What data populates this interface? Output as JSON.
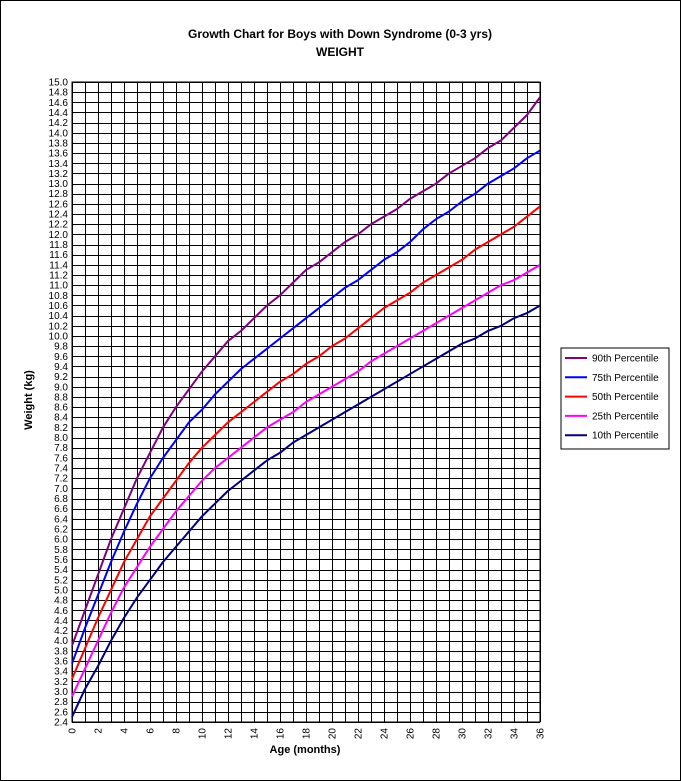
{
  "chart_data": {
    "type": "line",
    "title": "Growth Chart for Boys with Down Syndrome  (0-3 yrs)",
    "subtitle": "WEIGHT",
    "xlabel": "Age (months)",
    "ylabel": "Weight  (kg)",
    "xlim": [
      0,
      36
    ],
    "ylim": [
      2.4,
      15.0
    ],
    "x_major_step": 2,
    "x_minor_step": 1,
    "y_step": 0.2,
    "grid": true,
    "legend_position": "right",
    "series": [
      {
        "name": "90th Percentile",
        "color": "#800080",
        "x": [
          0,
          1,
          2,
          3,
          4,
          5,
          6,
          7,
          8,
          9,
          10,
          11,
          12,
          13,
          14,
          15,
          16,
          17,
          18,
          19,
          20,
          21,
          22,
          23,
          24,
          25,
          26,
          27,
          28,
          29,
          30,
          31,
          32,
          33,
          34,
          35,
          36
        ],
        "y": [
          3.9,
          4.6,
          5.3,
          6.0,
          6.6,
          7.2,
          7.7,
          8.2,
          8.6,
          8.95,
          9.3,
          9.6,
          9.9,
          10.1,
          10.35,
          10.6,
          10.8,
          11.05,
          11.3,
          11.45,
          11.65,
          11.85,
          12.0,
          12.2,
          12.35,
          12.5,
          12.7,
          12.85,
          13.0,
          13.2,
          13.35,
          13.5,
          13.7,
          13.85,
          14.1,
          14.35,
          14.7
        ]
      },
      {
        "name": "75th Percentile",
        "color": "#0000ff",
        "x": [
          0,
          1,
          2,
          3,
          4,
          5,
          6,
          7,
          8,
          9,
          10,
          11,
          12,
          13,
          14,
          15,
          16,
          17,
          18,
          19,
          20,
          21,
          22,
          23,
          24,
          25,
          26,
          27,
          28,
          29,
          30,
          31,
          32,
          33,
          34,
          35,
          36
        ],
        "y": [
          3.55,
          4.25,
          4.9,
          5.55,
          6.15,
          6.7,
          7.2,
          7.6,
          7.95,
          8.3,
          8.55,
          8.85,
          9.1,
          9.35,
          9.55,
          9.75,
          9.95,
          10.15,
          10.35,
          10.55,
          10.75,
          10.95,
          11.1,
          11.3,
          11.5,
          11.65,
          11.85,
          12.1,
          12.3,
          12.45,
          12.65,
          12.8,
          13.0,
          13.15,
          13.3,
          13.5,
          13.65
        ]
      },
      {
        "name": "50th Percentile",
        "color": "#ff0000",
        "x": [
          0,
          1,
          2,
          3,
          4,
          5,
          6,
          7,
          8,
          9,
          10,
          11,
          12,
          13,
          14,
          15,
          16,
          17,
          18,
          19,
          20,
          21,
          22,
          23,
          24,
          25,
          26,
          27,
          28,
          29,
          30,
          31,
          32,
          33,
          34,
          35,
          36
        ],
        "y": [
          3.25,
          3.85,
          4.45,
          5.0,
          5.55,
          6.0,
          6.45,
          6.8,
          7.15,
          7.5,
          7.8,
          8.05,
          8.3,
          8.5,
          8.7,
          8.9,
          9.1,
          9.25,
          9.45,
          9.6,
          9.8,
          9.95,
          10.15,
          10.35,
          10.55,
          10.7,
          10.85,
          11.05,
          11.2,
          11.35,
          11.5,
          11.7,
          11.85,
          12.0,
          12.15,
          12.35,
          12.55
        ]
      },
      {
        "name": "25th Percentile",
        "color": "#ff00ff",
        "x": [
          0,
          1,
          2,
          3,
          4,
          5,
          6,
          7,
          8,
          9,
          10,
          11,
          12,
          13,
          14,
          15,
          16,
          17,
          18,
          19,
          20,
          21,
          22,
          23,
          24,
          25,
          26,
          27,
          28,
          29,
          30,
          31,
          32,
          33,
          34,
          35,
          36
        ],
        "y": [
          2.9,
          3.45,
          4.0,
          4.55,
          5.05,
          5.45,
          5.85,
          6.2,
          6.55,
          6.85,
          7.15,
          7.4,
          7.6,
          7.8,
          8.0,
          8.2,
          8.35,
          8.5,
          8.7,
          8.85,
          9.0,
          9.15,
          9.3,
          9.5,
          9.65,
          9.8,
          9.95,
          10.1,
          10.25,
          10.4,
          10.55,
          10.7,
          10.85,
          11.0,
          11.1,
          11.25,
          11.4
        ]
      },
      {
        "name": "10th Percentile",
        "color": "#000080",
        "x": [
          0,
          1,
          2,
          3,
          4,
          5,
          6,
          7,
          8,
          9,
          10,
          11,
          12,
          13,
          14,
          15,
          16,
          17,
          18,
          19,
          20,
          21,
          22,
          23,
          24,
          25,
          26,
          27,
          28,
          29,
          30,
          31,
          32,
          33,
          34,
          35,
          36
        ],
        "y": [
          2.5,
          3.05,
          3.5,
          4.0,
          4.45,
          4.85,
          5.2,
          5.55,
          5.85,
          6.15,
          6.45,
          6.7,
          6.95,
          7.15,
          7.35,
          7.55,
          7.7,
          7.9,
          8.05,
          8.2,
          8.35,
          8.5,
          8.65,
          8.8,
          8.95,
          9.1,
          9.25,
          9.4,
          9.55,
          9.7,
          9.85,
          9.95,
          10.1,
          10.2,
          10.35,
          10.45,
          10.6
        ]
      }
    ]
  }
}
